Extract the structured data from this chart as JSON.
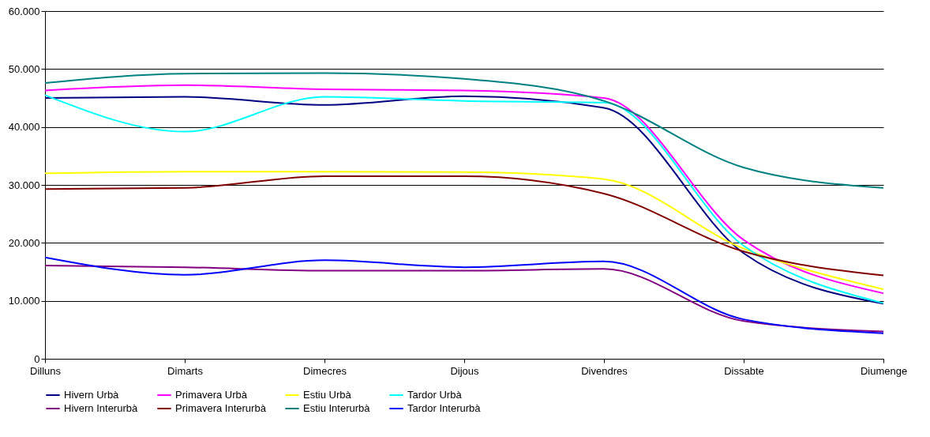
{
  "chart_data": {
    "type": "line",
    "categories": [
      "Dilluns",
      "Dimarts",
      "Dimecres",
      "Dijous",
      "Divendres",
      "Dissabte",
      "Diumenge"
    ],
    "ylim": [
      0,
      60000
    ],
    "yticks": [
      {
        "value": 0,
        "label": "0"
      },
      {
        "value": 10000,
        "label": "10.000"
      },
      {
        "value": 20000,
        "label": "20.000"
      },
      {
        "value": 30000,
        "label": "30.000"
      },
      {
        "value": 40000,
        "label": "40.000"
      },
      {
        "value": 50000,
        "label": "50.000"
      },
      {
        "value": 60000,
        "label": "60.000"
      }
    ],
    "grid": "y",
    "legend": "bottom",
    "marker": "none",
    "line_style": "solid",
    "series": [
      {
        "name": "Hivern Urbà",
        "color": "#000080",
        "values": [
          45000,
          45200,
          43800,
          45300,
          43300,
          18200,
          9500
        ]
      },
      {
        "name": "Primavera Urbà",
        "color": "#ff00ff",
        "values": [
          46300,
          47200,
          46500,
          46300,
          45000,
          20500,
          11300
        ]
      },
      {
        "name": "Estiu Urbà",
        "color": "#ffff00",
        "values": [
          32000,
          32300,
          32300,
          32200,
          31000,
          19000,
          12000
        ]
      },
      {
        "name": "Tardor Urbà",
        "color": "#00ffff",
        "values": [
          45500,
          39200,
          45200,
          44500,
          44200,
          19500,
          9600
        ]
      },
      {
        "name": "Hivern Interurbà",
        "color": "#800080",
        "values": [
          16100,
          15800,
          15200,
          15200,
          15500,
          6500,
          4700
        ]
      },
      {
        "name": "Primavera Interurbà",
        "color": "#800000",
        "values": [
          29300,
          29500,
          31500,
          31500,
          28500,
          18500,
          14400
        ]
      },
      {
        "name": "Estiu Interurbà",
        "color": "#008080",
        "values": [
          47600,
          49200,
          49300,
          48300,
          44500,
          33000,
          29500
        ]
      },
      {
        "name": "Tardor Interurbà",
        "color": "#0000ff",
        "values": [
          17500,
          14500,
          17000,
          15800,
          16800,
          6800,
          4400
        ]
      }
    ]
  }
}
